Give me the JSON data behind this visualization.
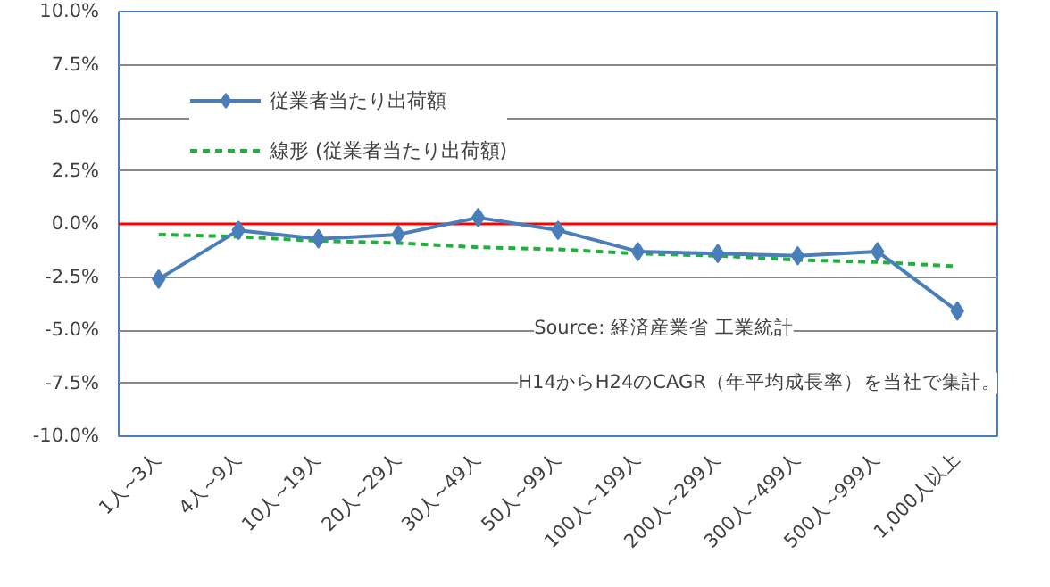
{
  "chart_data": {
    "type": "line",
    "categories": [
      "1人~3人",
      "4人~9人",
      "10人~19人",
      "20人~29人",
      "30人~49人",
      "50人~99人",
      "100人~199人",
      "200人~299人",
      "300人~499人",
      "500人~999人",
      "1,000人以上"
    ],
    "series": [
      {
        "name": "従業者当たり出荷額",
        "color": "#4a7ebb",
        "marker": "diamond",
        "line_style": "solid",
        "values": [
          -2.6,
          -0.3,
          -0.7,
          -0.5,
          0.3,
          -0.3,
          -1.3,
          -1.4,
          -1.5,
          -1.3,
          -4.1
        ]
      },
      {
        "name": "線形 (従業者当たり出荷額)",
        "color": "#1db33a",
        "marker": "none",
        "line_style": "dashed",
        "values": [
          -0.5,
          -0.6,
          -0.8,
          -0.9,
          -1.1,
          -1.2,
          -1.4,
          -1.5,
          -1.7,
          -1.8,
          -2.0
        ]
      }
    ],
    "ylim": [
      -10,
      10
    ],
    "yticks": [
      {
        "value": -10,
        "label": "-10.0%"
      },
      {
        "value": -7.5,
        "label": "-7.5%"
      },
      {
        "value": -5,
        "label": "-5.0%"
      },
      {
        "value": -2.5,
        "label": "-2.5%"
      },
      {
        "value": 0,
        "label": "0.0%"
      },
      {
        "value": 2.5,
        "label": "2.5%"
      },
      {
        "value": 5,
        "label": "5.0%"
      },
      {
        "value": 7.5,
        "label": "7.5%"
      },
      {
        "value": 10,
        "label": "10.0%"
      }
    ],
    "ref_lines": [
      {
        "axis": "y",
        "value": 0,
        "color": "#ff0000"
      }
    ],
    "grid": "y",
    "legend": "top left",
    "annotations": [
      "Source: 経済産業省 工業統計",
      "H14からH24のCAGR（年平均成長率）を当社で集計。"
    ]
  }
}
